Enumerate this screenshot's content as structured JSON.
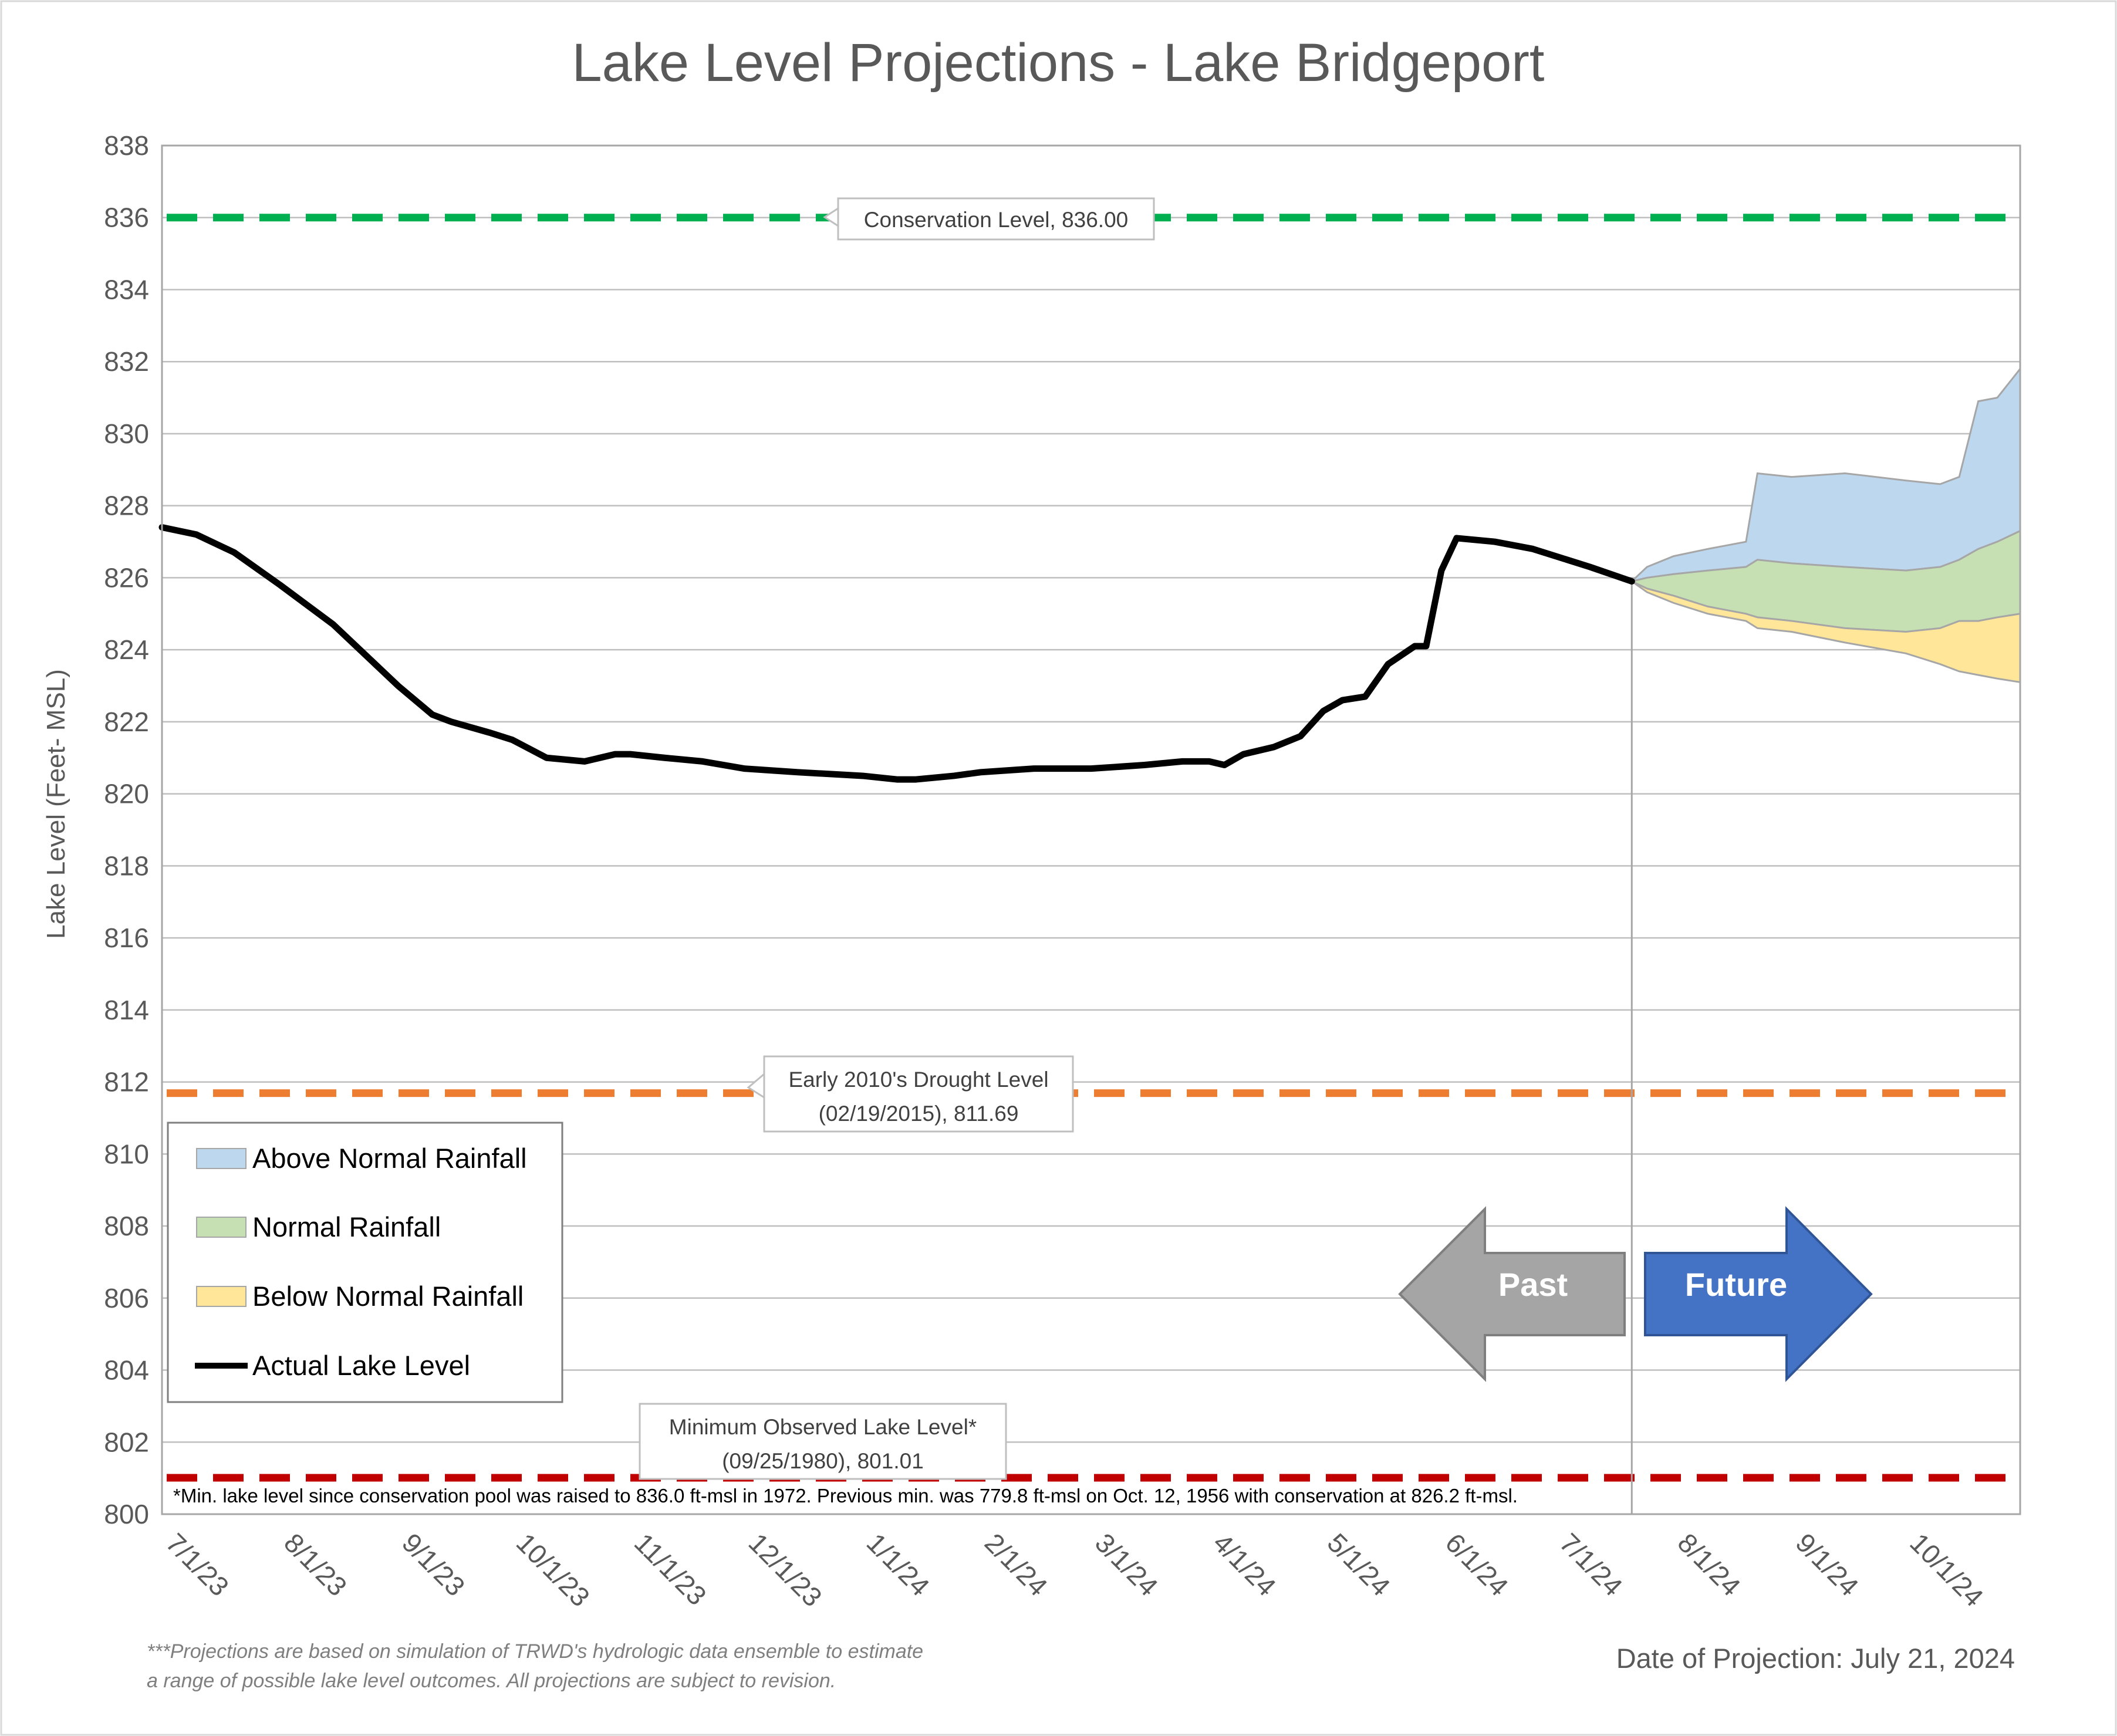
{
  "chart_data": {
    "type": "line",
    "title": "Lake Level Projections - Lake Bridgeport",
    "ylabel": "Lake Level (Feet- MSL)",
    "xlabel": "",
    "ylim": [
      800,
      838
    ],
    "y_ticks": [
      800,
      802,
      804,
      806,
      808,
      810,
      812,
      814,
      816,
      818,
      820,
      822,
      824,
      826,
      828,
      830,
      832,
      834,
      836,
      838
    ],
    "x_ticks": [
      "7/1/23",
      "8/1/23",
      "9/1/23",
      "10/1/23",
      "11/1/23",
      "12/1/23",
      "1/1/24",
      "2/1/24",
      "3/1/24",
      "4/1/24",
      "5/1/24",
      "6/1/24",
      "7/1/24",
      "8/1/24",
      "9/1/24",
      "10/1/24"
    ],
    "x_range": [
      "2023-07-01",
      "2024-10-31"
    ],
    "grid": true,
    "legend_position": "bottom-left",
    "reference_lines": [
      {
        "value": 836.0,
        "color": "#00b050",
        "label": "Conservation Level, 836.00"
      },
      {
        "value": 811.69,
        "color": "#ed7d31",
        "label_line1": "Early 2010's Drought Level",
        "label_line2": "(02/19/2015), 811.69"
      },
      {
        "value": 801.01,
        "color": "#c00000",
        "label_line1": "Minimum Observed Lake Level*",
        "label_line2": "(09/25/1980), 801.01"
      }
    ],
    "series": [
      {
        "name": "Actual Lake Level",
        "color": "#000000",
        "x": [
          "2023-07-01",
          "2023-07-10",
          "2023-07-20",
          "2023-08-01",
          "2023-08-15",
          "2023-09-01",
          "2023-09-10",
          "2023-09-15",
          "2023-09-25",
          "2023-10-01",
          "2023-10-10",
          "2023-10-20",
          "2023-10-28",
          "2023-11-01",
          "2023-11-10",
          "2023-11-20",
          "2023-12-01",
          "2023-12-15",
          "2024-01-01",
          "2024-01-10",
          "2024-01-15",
          "2024-01-25",
          "2024-02-01",
          "2024-02-15",
          "2024-03-01",
          "2024-03-15",
          "2024-03-25",
          "2024-04-01",
          "2024-04-05",
          "2024-04-10",
          "2024-04-18",
          "2024-04-25",
          "2024-05-01",
          "2024-05-06",
          "2024-05-12",
          "2024-05-18",
          "2024-05-25",
          "2024-05-28",
          "2024-06-01",
          "2024-06-05",
          "2024-06-15",
          "2024-06-25",
          "2024-07-01",
          "2024-07-10",
          "2024-07-21"
        ],
        "y": [
          827.4,
          827.2,
          826.7,
          825.8,
          824.7,
          823.0,
          822.2,
          822.0,
          821.7,
          821.5,
          821.0,
          820.9,
          821.1,
          821.1,
          821.0,
          820.9,
          820.7,
          820.6,
          820.5,
          820.4,
          820.4,
          820.5,
          820.6,
          820.7,
          820.7,
          820.8,
          820.9,
          820.9,
          820.8,
          821.1,
          821.3,
          821.6,
          822.3,
          822.6,
          822.7,
          823.6,
          824.1,
          824.1,
          826.2,
          827.1,
          827.0,
          826.8,
          826.6,
          826.3,
          825.9
        ]
      }
    ],
    "projection_start": "2024-07-21",
    "bands": [
      {
        "name": "Above Normal Rainfall",
        "color": "#bdd7ee",
        "x": [
          "2024-07-21",
          "2024-07-25",
          "2024-08-01",
          "2024-08-10",
          "2024-08-20",
          "2024-08-23",
          "2024-09-01",
          "2024-09-15",
          "2024-10-01",
          "2024-10-10",
          "2024-10-15",
          "2024-10-20",
          "2024-10-25",
          "2024-10-31"
        ],
        "upper": [
          825.9,
          826.3,
          826.6,
          826.8,
          827.0,
          828.9,
          828.8,
          828.9,
          828.7,
          828.6,
          828.8,
          830.9,
          831.0,
          831.8
        ],
        "lower": [
          825.9,
          826.0,
          826.1,
          826.2,
          826.3,
          826.5,
          826.4,
          826.3,
          826.2,
          826.3,
          826.5,
          826.8,
          827.0,
          827.3
        ]
      },
      {
        "name": "Normal Rainfall",
        "color": "#c6e0b4",
        "x": [
          "2024-07-21",
          "2024-07-25",
          "2024-08-01",
          "2024-08-10",
          "2024-08-20",
          "2024-08-23",
          "2024-09-01",
          "2024-09-15",
          "2024-10-01",
          "2024-10-10",
          "2024-10-15",
          "2024-10-20",
          "2024-10-25",
          "2024-10-31"
        ],
        "upper": [
          825.9,
          826.0,
          826.1,
          826.2,
          826.3,
          826.5,
          826.4,
          826.3,
          826.2,
          826.3,
          826.5,
          826.8,
          827.0,
          827.3
        ],
        "lower": [
          825.9,
          825.7,
          825.5,
          825.2,
          825.0,
          824.9,
          824.8,
          824.6,
          824.5,
          824.6,
          824.8,
          824.8,
          824.9,
          825.0
        ]
      },
      {
        "name": "Below Normal Rainfall",
        "color": "#ffe699",
        "x": [
          "2024-07-21",
          "2024-07-25",
          "2024-08-01",
          "2024-08-10",
          "2024-08-20",
          "2024-08-23",
          "2024-09-01",
          "2024-09-15",
          "2024-10-01",
          "2024-10-10",
          "2024-10-15",
          "2024-10-20",
          "2024-10-25",
          "2024-10-31"
        ],
        "upper": [
          825.9,
          825.7,
          825.5,
          825.2,
          825.0,
          824.9,
          824.8,
          824.6,
          824.5,
          824.6,
          824.8,
          824.8,
          824.9,
          825.0
        ],
        "lower": [
          825.9,
          825.6,
          825.3,
          825.0,
          824.8,
          824.6,
          824.5,
          824.2,
          823.9,
          823.6,
          823.4,
          823.3,
          823.2,
          823.1
        ]
      }
    ],
    "legend": [
      {
        "label": "Above Normal Rainfall",
        "color": "#bdd7ee",
        "kind": "box"
      },
      {
        "label": "Normal Rainfall",
        "color": "#c6e0b4",
        "kind": "box"
      },
      {
        "label": "Below Normal Rainfall",
        "color": "#ffe699",
        "kind": "box"
      },
      {
        "label": "Actual Lake Level",
        "color": "#000000",
        "kind": "line"
      }
    ],
    "arrows": {
      "past": "Past",
      "future": "Future",
      "past_color": "#a5a5a5",
      "future_color": "#4472c4"
    },
    "note": "*Min. lake level since conservation pool was raised to 836.0 ft-msl in 1972.  Previous min. was 779.8 ft-msl on Oct. 12, 1956 with conservation at 826.2 ft-msl.",
    "footnote_line1": "***Projections are based on simulation of TRWD's hydrologic data ensemble to estimate",
    "footnote_line2": "a range of possible lake level outcomes.  All projections are subject to revision.",
    "projection_date": "Date of Projection: July 21, 2024"
  }
}
